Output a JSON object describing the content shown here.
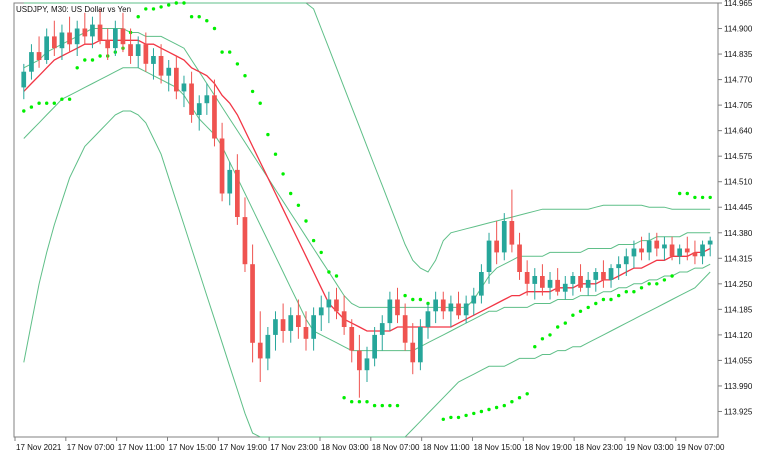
{
  "window": {
    "title": "USDJPY, M30:  US Dollar vs Yen"
  },
  "colors": {
    "background": "#ffffff",
    "frame": "#808080",
    "candle_up": "#26a69a",
    "candle_down": "#ef5350",
    "moving_average": "#f23645",
    "band": "#5fbf88",
    "sar": "#00ee00",
    "text": "#111111"
  },
  "chart_data": {
    "type": "candlestick",
    "symbol": "USDJPY",
    "timeframe": "M30",
    "title": "USDJPY, M30:  US Dollar vs Yen",
    "y_axis": {
      "side": "right",
      "ticks": [
        "114.965",
        "114.900",
        "114.835",
        "114.770",
        "114.705",
        "114.640",
        "114.575",
        "114.510",
        "114.445",
        "114.380",
        "114.315",
        "114.250",
        "114.185",
        "114.120",
        "114.055",
        "113.990",
        "113.925"
      ],
      "range": [
        113.86,
        114.965
      ]
    },
    "x_axis": {
      "ticks": [
        "17 Nov 2021",
        "17 Nov 07:00",
        "17 Nov 11:00",
        "17 Nov 15:00",
        "17 Nov 19:00",
        "17 Nov 23:00",
        "18 Nov 03:00",
        "18 Nov 07:00",
        "18 Nov 11:00",
        "18 Nov 15:00",
        "18 Nov 19:00",
        "18 Nov 23:00",
        "19 Nov 03:00",
        "19 Nov 07:00"
      ]
    },
    "indicators": [
      "Moving Average (red)",
      "Envelope bands (green lines)",
      "Parabolic SAR (green dots)"
    ],
    "ohlc": [
      [
        114.75,
        114.81,
        114.72,
        114.79
      ],
      [
        114.79,
        114.86,
        114.77,
        114.84
      ],
      [
        114.84,
        114.88,
        114.8,
        114.82
      ],
      [
        114.82,
        114.9,
        114.81,
        114.88
      ],
      [
        114.88,
        114.92,
        114.83,
        114.85
      ],
      [
        114.85,
        114.91,
        114.82,
        114.89
      ],
      [
        114.89,
        114.93,
        114.84,
        114.86
      ],
      [
        114.86,
        114.92,
        114.83,
        114.9
      ],
      [
        114.9,
        114.94,
        114.86,
        114.88
      ],
      [
        114.88,
        114.93,
        114.85,
        114.91
      ],
      [
        114.91,
        114.95,
        114.86,
        114.87
      ],
      [
        114.87,
        114.9,
        114.82,
        114.85
      ],
      [
        114.85,
        114.92,
        114.83,
        114.9
      ],
      [
        114.9,
        114.94,
        114.84,
        114.86
      ],
      [
        114.86,
        114.9,
        114.81,
        114.83
      ],
      [
        114.83,
        114.88,
        114.8,
        114.86
      ],
      [
        114.86,
        114.89,
        114.79,
        114.81
      ],
      [
        114.81,
        114.85,
        114.77,
        114.83
      ],
      [
        114.83,
        114.86,
        114.76,
        114.78
      ],
      [
        114.78,
        114.82,
        114.74,
        114.8
      ],
      [
        114.8,
        114.83,
        114.72,
        114.74
      ],
      [
        114.74,
        114.78,
        114.7,
        114.76
      ],
      [
        114.76,
        114.79,
        114.66,
        114.68
      ],
      [
        114.68,
        114.73,
        114.64,
        114.71
      ],
      [
        114.71,
        114.76,
        114.68,
        114.73
      ],
      [
        114.73,
        114.77,
        114.6,
        114.62
      ],
      [
        114.62,
        114.66,
        114.46,
        114.48
      ],
      [
        114.48,
        114.56,
        114.45,
        114.54
      ],
      [
        114.54,
        114.58,
        114.4,
        114.42
      ],
      [
        114.42,
        114.47,
        114.28,
        114.3
      ],
      [
        114.3,
        114.35,
        114.05,
        114.1
      ],
      [
        114.1,
        114.18,
        114.0,
        114.06
      ],
      [
        114.06,
        114.14,
        114.03,
        114.12
      ],
      [
        114.12,
        114.18,
        114.08,
        114.16
      ],
      [
        114.16,
        114.2,
        114.1,
        114.13
      ],
      [
        114.13,
        114.19,
        114.1,
        114.17
      ],
      [
        114.17,
        114.21,
        114.11,
        114.14
      ],
      [
        114.14,
        114.18,
        114.08,
        114.11
      ],
      [
        114.11,
        114.19,
        114.08,
        114.17
      ],
      [
        114.17,
        114.22,
        114.13,
        114.19
      ],
      [
        114.19,
        114.23,
        114.15,
        114.21
      ],
      [
        114.21,
        114.24,
        114.16,
        114.18
      ],
      [
        114.18,
        114.22,
        114.12,
        114.14
      ],
      [
        114.14,
        114.16,
        114.05,
        114.08
      ],
      [
        114.08,
        114.12,
        113.96,
        114.03
      ],
      [
        114.03,
        114.09,
        114.0,
        114.06
      ],
      [
        114.06,
        114.14,
        114.04,
        114.12
      ],
      [
        114.12,
        114.17,
        114.08,
        114.15
      ],
      [
        114.15,
        114.23,
        114.13,
        114.21
      ],
      [
        114.21,
        114.24,
        114.15,
        114.17
      ],
      [
        114.17,
        114.2,
        114.08,
        114.1
      ],
      [
        114.1,
        114.15,
        114.02,
        114.05
      ],
      [
        114.05,
        114.16,
        114.03,
        114.14
      ],
      [
        114.14,
        114.2,
        114.11,
        114.18
      ],
      [
        114.18,
        114.23,
        114.15,
        114.21
      ],
      [
        114.21,
        114.23,
        114.16,
        114.18
      ],
      [
        114.18,
        114.22,
        114.14,
        114.2
      ],
      [
        114.2,
        114.23,
        114.16,
        114.17
      ],
      [
        114.17,
        114.22,
        114.15,
        114.2
      ],
      [
        114.2,
        114.24,
        114.17,
        114.22
      ],
      [
        114.22,
        114.3,
        114.2,
        114.28
      ],
      [
        114.28,
        114.38,
        114.25,
        114.36
      ],
      [
        114.36,
        114.41,
        114.3,
        114.33
      ],
      [
        114.33,
        114.43,
        114.31,
        114.41
      ],
      [
        114.41,
        114.49,
        114.33,
        114.35
      ],
      [
        114.35,
        114.38,
        114.26,
        114.28
      ],
      [
        114.28,
        114.31,
        114.22,
        114.25
      ],
      [
        114.25,
        114.29,
        114.21,
        114.27
      ],
      [
        114.27,
        114.3,
        114.22,
        114.24
      ],
      [
        114.24,
        114.28,
        114.21,
        114.26
      ],
      [
        114.26,
        114.29,
        114.22,
        114.23
      ],
      [
        114.23,
        114.27,
        114.21,
        114.25
      ],
      [
        114.25,
        114.28,
        114.22,
        114.27
      ],
      [
        114.27,
        114.3,
        114.23,
        114.24
      ],
      [
        114.24,
        114.28,
        114.22,
        114.26
      ],
      [
        114.26,
        114.29,
        114.23,
        114.28
      ],
      [
        114.28,
        114.31,
        114.24,
        114.26
      ],
      [
        114.26,
        114.3,
        114.24,
        114.29
      ],
      [
        114.29,
        114.32,
        114.26,
        114.3
      ],
      [
        114.3,
        114.34,
        114.27,
        114.32
      ],
      [
        114.32,
        114.36,
        114.29,
        114.34
      ],
      [
        114.34,
        114.37,
        114.31,
        114.33
      ],
      [
        114.33,
        114.38,
        114.31,
        114.36
      ],
      [
        114.36,
        114.38,
        114.32,
        114.34
      ],
      [
        114.34,
        114.37,
        114.31,
        114.35
      ],
      [
        114.35,
        114.37,
        114.31,
        114.32
      ],
      [
        114.32,
        114.35,
        114.3,
        114.34
      ],
      [
        114.34,
        114.37,
        114.31,
        114.33
      ],
      [
        114.33,
        114.36,
        114.3,
        114.32
      ],
      [
        114.32,
        114.36,
        114.3,
        114.35
      ],
      [
        114.35,
        114.37,
        114.32,
        114.36
      ]
    ],
    "moving_average": [
      114.74,
      114.76,
      114.78,
      114.8,
      114.82,
      114.83,
      114.84,
      114.85,
      114.86,
      114.86,
      114.87,
      114.87,
      114.87,
      114.87,
      114.87,
      114.87,
      114.86,
      114.86,
      114.85,
      114.84,
      114.83,
      114.82,
      114.8,
      114.79,
      114.78,
      114.76,
      114.73,
      114.71,
      114.68,
      114.64,
      114.6,
      114.56,
      114.52,
      114.48,
      114.44,
      114.4,
      114.36,
      114.32,
      114.28,
      114.24,
      114.2,
      114.18,
      114.16,
      114.15,
      114.14,
      114.13,
      114.13,
      114.13,
      114.13,
      114.14,
      114.14,
      114.14,
      114.14,
      114.14,
      114.14,
      114.14,
      114.14,
      114.15,
      114.16,
      114.17,
      114.18,
      114.19,
      114.2,
      114.21,
      114.22,
      114.22,
      114.23,
      114.23,
      114.23,
      114.23,
      114.24,
      114.24,
      114.24,
      114.25,
      114.25,
      114.25,
      114.26,
      114.26,
      114.27,
      114.28,
      114.29,
      114.29,
      114.3,
      114.31,
      114.31,
      114.32,
      114.32,
      114.32,
      114.33,
      114.33,
      114.34
    ],
    "upper_band": [
      114.965,
      114.965,
      114.965,
      114.965,
      114.965,
      114.965,
      114.965,
      114.965,
      114.965,
      114.965,
      114.965,
      114.965,
      114.965,
      114.965,
      114.965,
      114.965,
      114.965,
      114.965,
      114.965,
      114.965,
      114.965,
      114.965,
      114.965,
      114.965,
      114.965,
      114.965,
      114.965,
      114.965,
      114.965,
      114.965,
      114.965,
      114.965,
      114.965,
      114.965,
      114.965,
      114.965,
      114.965,
      114.965,
      114.95,
      114.9,
      114.85,
      114.8,
      114.75,
      114.7,
      114.65,
      114.6,
      114.55,
      114.5,
      114.45,
      114.4,
      114.35,
      114.31,
      114.29,
      114.28,
      114.31,
      114.36,
      114.38,
      114.385,
      114.39,
      114.395,
      114.4,
      114.405,
      114.41,
      114.415,
      114.42,
      114.425,
      114.43,
      114.435,
      114.44,
      114.44,
      114.44,
      114.44,
      114.44,
      114.44,
      114.44,
      114.445,
      114.45,
      114.45,
      114.45,
      114.45,
      114.45,
      114.45,
      114.445,
      114.445,
      114.445,
      114.44,
      114.44,
      114.44,
      114.44,
      114.44,
      114.44
    ],
    "lower_band": [
      114.05,
      114.15,
      114.25,
      114.33,
      114.4,
      114.46,
      114.52,
      114.56,
      114.6,
      114.62,
      114.64,
      114.66,
      114.68,
      114.69,
      114.69,
      114.68,
      114.66,
      114.62,
      114.58,
      114.52,
      114.46,
      114.4,
      114.34,
      114.28,
      114.22,
      114.16,
      114.1,
      114.04,
      113.98,
      113.92,
      113.87,
      113.86,
      113.86,
      113.86,
      113.86,
      113.86,
      113.86,
      113.86,
      113.86,
      113.86,
      113.86,
      113.86,
      113.86,
      113.86,
      113.86,
      113.86,
      113.86,
      113.86,
      113.86,
      113.86,
      113.86,
      113.88,
      113.9,
      113.92,
      113.94,
      113.96,
      113.98,
      114.0,
      114.01,
      114.02,
      114.03,
      114.04,
      114.04,
      114.04,
      114.05,
      114.06,
      114.06,
      114.06,
      114.07,
      114.07,
      114.08,
      114.08,
      114.09,
      114.09,
      114.1,
      114.11,
      114.12,
      114.13,
      114.14,
      114.15,
      114.16,
      114.17,
      114.18,
      114.19,
      114.2,
      114.21,
      114.22,
      114.23,
      114.24,
      114.26,
      114.28
    ],
    "mid_upper_band": [
      114.8,
      114.81,
      114.82,
      114.84,
      114.85,
      114.86,
      114.87,
      114.88,
      114.89,
      114.9,
      114.9,
      114.9,
      114.9,
      114.9,
      114.89,
      114.89,
      114.88,
      114.88,
      114.88,
      114.87,
      114.86,
      114.85,
      114.82,
      114.79,
      114.76,
      114.73,
      114.7,
      114.67,
      114.64,
      114.61,
      114.58,
      114.55,
      114.52,
      114.49,
      114.46,
      114.43,
      114.4,
      114.37,
      114.34,
      114.31,
      114.28,
      114.25,
      114.22,
      114.2,
      114.19,
      114.19,
      114.19,
      114.19,
      114.19,
      114.19,
      114.19,
      114.19,
      114.19,
      114.19,
      114.19,
      114.19,
      114.19,
      114.19,
      114.19,
      114.21,
      114.24,
      114.27,
      114.29,
      114.3,
      114.31,
      114.32,
      114.32,
      114.32,
      114.32,
      114.33,
      114.33,
      114.33,
      114.33,
      114.33,
      114.34,
      114.34,
      114.34,
      114.34,
      114.35,
      114.35,
      114.35,
      114.36,
      114.36,
      114.37,
      114.37,
      114.37,
      114.37,
      114.38,
      114.38,
      114.38,
      114.38
    ],
    "mid_lower_band": [
      114.62,
      114.64,
      114.66,
      114.68,
      114.7,
      114.72,
      114.73,
      114.74,
      114.75,
      114.76,
      114.77,
      114.78,
      114.79,
      114.8,
      114.8,
      114.8,
      114.79,
      114.78,
      114.77,
      114.76,
      114.75,
      114.73,
      114.7,
      114.67,
      114.65,
      114.63,
      114.6,
      114.56,
      114.52,
      114.48,
      114.44,
      114.4,
      114.36,
      114.32,
      114.28,
      114.24,
      114.2,
      114.16,
      114.13,
      114.12,
      114.11,
      114.1,
      114.09,
      114.08,
      114.08,
      114.08,
      114.08,
      114.08,
      114.08,
      114.08,
      114.08,
      114.08,
      114.09,
      114.1,
      114.11,
      114.12,
      114.13,
      114.14,
      114.15,
      114.16,
      114.17,
      114.18,
      114.18,
      114.19,
      114.19,
      114.19,
      114.19,
      114.2,
      114.2,
      114.2,
      114.21,
      114.21,
      114.21,
      114.22,
      114.22,
      114.22,
      114.23,
      114.23,
      114.24,
      114.24,
      114.25,
      114.25,
      114.26,
      114.26,
      114.27,
      114.27,
      114.28,
      114.28,
      114.29,
      114.29,
      114.3
    ],
    "sar": [
      114.69,
      114.7,
      114.71,
      114.71,
      114.71,
      114.72,
      114.72,
      114.8,
      114.82,
      114.82,
      114.83,
      114.83,
      114.84,
      114.85,
      114.89,
      114.93,
      114.95,
      114.95,
      114.955,
      114.96,
      114.965,
      114.965,
      114.93,
      114.93,
      114.92,
      114.9,
      114.84,
      114.84,
      114.81,
      114.78,
      114.74,
      114.71,
      114.63,
      114.58,
      114.53,
      114.48,
      114.45,
      114.41,
      114.36,
      114.33,
      114.28,
      114.27,
      113.96,
      113.95,
      113.95,
      113.95,
      113.94,
      113.94,
      113.94,
      113.94,
      114.22,
      114.21,
      114.21,
      114.2,
      114.2,
      113.905,
      113.91,
      113.91,
      113.915,
      113.92,
      113.925,
      113.93,
      113.935,
      113.94,
      113.95,
      113.96,
      113.97,
      114.09,
      114.11,
      114.12,
      114.14,
      114.15,
      114.17,
      114.18,
      114.19,
      114.2,
      114.21,
      114.21,
      114.22,
      114.23,
      114.23,
      114.24,
      114.25,
      114.25,
      114.26,
      114.27,
      114.48,
      114.48,
      114.47,
      114.47,
      114.47
    ]
  }
}
